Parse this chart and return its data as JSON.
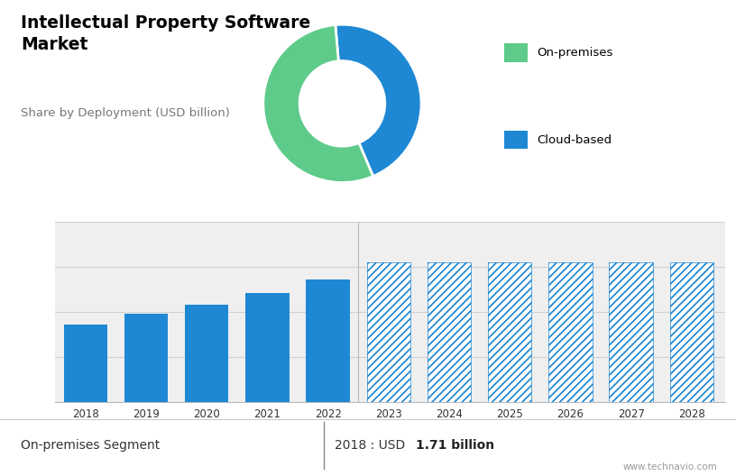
{
  "title": "Intellectual Property Software\nMarket",
  "subtitle": "Share by Deployment (USD billion)",
  "pie_values": [
    45,
    55
  ],
  "pie_labels": [
    "Cloud-based",
    "On-premises"
  ],
  "pie_colors": [
    "#1e88d4",
    "#5ecb8a"
  ],
  "pie_startangle": 95,
  "bar_years_solid": [
    2018,
    2019,
    2020,
    2021,
    2022
  ],
  "bar_values_solid": [
    1.71,
    1.95,
    2.15,
    2.42,
    2.72
  ],
  "bar_years_hatched": [
    2023,
    2024,
    2025,
    2026,
    2027,
    2028
  ],
  "bar_values_hatched": [
    3.1,
    3.1,
    3.1,
    3.1,
    3.1,
    3.1
  ],
  "bar_color_solid": "#1e88d4",
  "bar_color_hatched": "#1e88d4",
  "top_bg_color": "#d9d9d9",
  "bar_bg_color": "#efefef",
  "grid_color": "#d0d0d0",
  "footer_label": "On-premises Segment",
  "footer_year": "2018",
  "footer_value": "1.71 billion",
  "watermark": "www.technavio.com",
  "legend_labels": [
    "On-premises",
    "Cloud-based"
  ],
  "legend_colors": [
    "#5ecb8a",
    "#1e88d4"
  ],
  "ylim": [
    0,
    4.0
  ],
  "ytick_interval": 1.0
}
